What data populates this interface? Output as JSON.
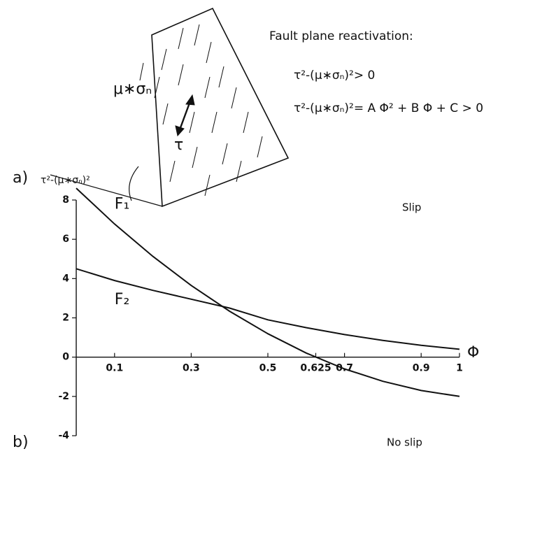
{
  "panel_a": {
    "label": "a)",
    "title": "Fault plane reactivation:",
    "equation_1": "τ²-(μ∗σₙ)²> 0",
    "equation_2": "τ²-(μ∗σₙ)²= A Φ² + B Φ + C > 0",
    "normal_stress_label": "μ∗σₙ",
    "shear_stress_label": "τ"
  },
  "chart_data": {
    "type": "line",
    "panel_label": "b)",
    "y_label": "τ²-(μ∗σₙ)²",
    "x_label": "Φ",
    "x": [
      0,
      0.1,
      0.2,
      0.3,
      0.4,
      0.5,
      0.6,
      0.7,
      0.8,
      0.9,
      1
    ],
    "series": [
      {
        "name": "F₁",
        "color": "#111111",
        "values": [
          8.6,
          6.78,
          5.13,
          3.65,
          2.34,
          1.19,
          0.21,
          -0.6,
          -1.23,
          -1.7,
          -2.0
        ]
      },
      {
        "name": "F₂",
        "color": "#111111",
        "values": [
          4.5,
          3.9,
          3.4,
          2.95,
          2.5,
          1.9,
          1.5,
          1.15,
          0.85,
          0.6,
          0.4
        ]
      }
    ],
    "xlim": [
      0,
      1
    ],
    "ylim": [
      -4,
      8
    ],
    "xticks": [
      0.1,
      0.3,
      0.5,
      0.625,
      0.7,
      0.9,
      1
    ],
    "yticks": [
      -4,
      -2,
      0,
      2,
      4,
      6,
      8
    ],
    "annotations": [
      "Slip",
      "No slip"
    ]
  }
}
